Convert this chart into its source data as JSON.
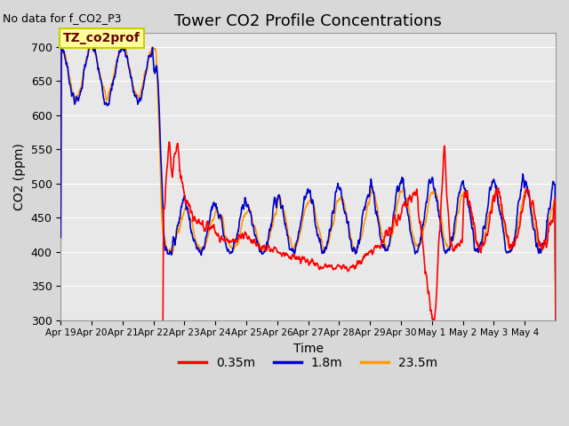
{
  "title": "Tower CO2 Profile Concentrations",
  "subtitle": "No data for f_CO2_P3",
  "xlabel": "Time",
  "ylabel": "CO2 (ppm)",
  "ylim": [
    300,
    720
  ],
  "yticks": [
    300,
    350,
    400,
    450,
    500,
    550,
    600,
    650,
    700
  ],
  "xtick_labels": [
    "Apr 19",
    "Apr 20",
    "Apr 21",
    "Apr 22",
    "Apr 23",
    "Apr 24",
    "Apr 25",
    "Apr 26",
    "Apr 27",
    "Apr 28",
    "Apr 29",
    "Apr 30",
    "May 1",
    "May 2",
    "May 3",
    "May 4"
  ],
  "legend_labels": [
    "0.35m",
    "1.8m",
    "23.5m"
  ],
  "legend_colors": [
    "#ff0000",
    "#0000cc",
    "#ff9900"
  ],
  "box_label": "TZ_co2prof",
  "box_color": "#ffff99",
  "box_edge_color": "#cccc00",
  "plot_bg_color": "#e8e8e8",
  "grid_color": "#ffffff",
  "line_width": 1.2
}
